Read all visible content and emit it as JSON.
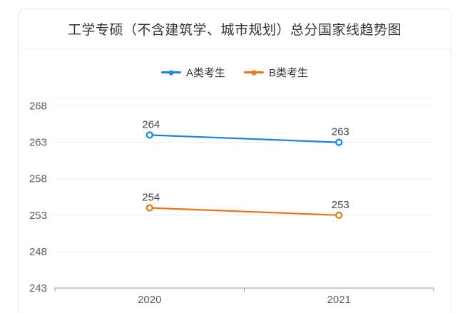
{
  "card": {
    "background": "#ffffff",
    "border_color": "#e7e7e7"
  },
  "chart_data": {
    "type": "line",
    "title": "工学专硕（不含建筑学、城市规划）总分国家线趋势图",
    "categories": [
      "2020",
      "2021"
    ],
    "series": [
      {
        "name": "A类考生",
        "color": "#1b83e4",
        "values": [
          264,
          263
        ]
      },
      {
        "name": "B类考生",
        "color": "#ef7010",
        "values": [
          254,
          253
        ]
      }
    ],
    "yticks": [
      243,
      248,
      253,
      258,
      263,
      268
    ],
    "ylim": [
      243,
      268
    ],
    "xlabel": "",
    "ylabel": "",
    "grid": true,
    "legend_position": "top-center",
    "data_labels": true,
    "marker": "hollow-circle",
    "colors": {
      "grid_line": "#ededed",
      "axis_line": "#979797",
      "tick_label": "#5e5e5e",
      "data_label": "#474747",
      "title": "#333333",
      "legend_text": "#333333"
    }
  }
}
